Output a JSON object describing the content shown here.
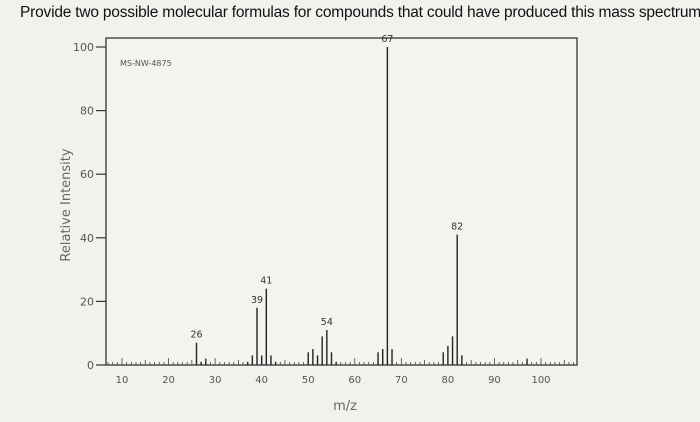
{
  "question": "Provide two possible molecular formulas for compounds that could have produced this mass spectrum.",
  "chart_data": {
    "type": "bar",
    "spectrum_id": "MS-NW-4875",
    "xlabel": "m/z",
    "ylabel": "Relative Intensity",
    "xlim": [
      5,
      108
    ],
    "ylim": [
      0,
      100
    ],
    "x_ticks": [
      10,
      20,
      30,
      40,
      50,
      60,
      70,
      80,
      90,
      100
    ],
    "y_ticks": [
      0,
      20,
      40,
      60,
      80,
      100
    ],
    "grid": false,
    "peaks": [
      {
        "mz": 26,
        "intensity": 7
      },
      {
        "mz": 27,
        "intensity": 1
      },
      {
        "mz": 28,
        "intensity": 2
      },
      {
        "mz": 37,
        "intensity": 1
      },
      {
        "mz": 38,
        "intensity": 3
      },
      {
        "mz": 39,
        "intensity": 18
      },
      {
        "mz": 40,
        "intensity": 3
      },
      {
        "mz": 41,
        "intensity": 24
      },
      {
        "mz": 42,
        "intensity": 3
      },
      {
        "mz": 43,
        "intensity": 1
      },
      {
        "mz": 50,
        "intensity": 4
      },
      {
        "mz": 51,
        "intensity": 5
      },
      {
        "mz": 52,
        "intensity": 3
      },
      {
        "mz": 53,
        "intensity": 9
      },
      {
        "mz": 54,
        "intensity": 11
      },
      {
        "mz": 55,
        "intensity": 4
      },
      {
        "mz": 56,
        "intensity": 1
      },
      {
        "mz": 65,
        "intensity": 4
      },
      {
        "mz": 66,
        "intensity": 5
      },
      {
        "mz": 67,
        "intensity": 100
      },
      {
        "mz": 68,
        "intensity": 5
      },
      {
        "mz": 79,
        "intensity": 4
      },
      {
        "mz": 80,
        "intensity": 6
      },
      {
        "mz": 81,
        "intensity": 9
      },
      {
        "mz": 82,
        "intensity": 41
      },
      {
        "mz": 83,
        "intensity": 3
      },
      {
        "mz": 97,
        "intensity": 2
      }
    ],
    "labeled_peaks": [
      26,
      39,
      41,
      54,
      67,
      82
    ]
  }
}
